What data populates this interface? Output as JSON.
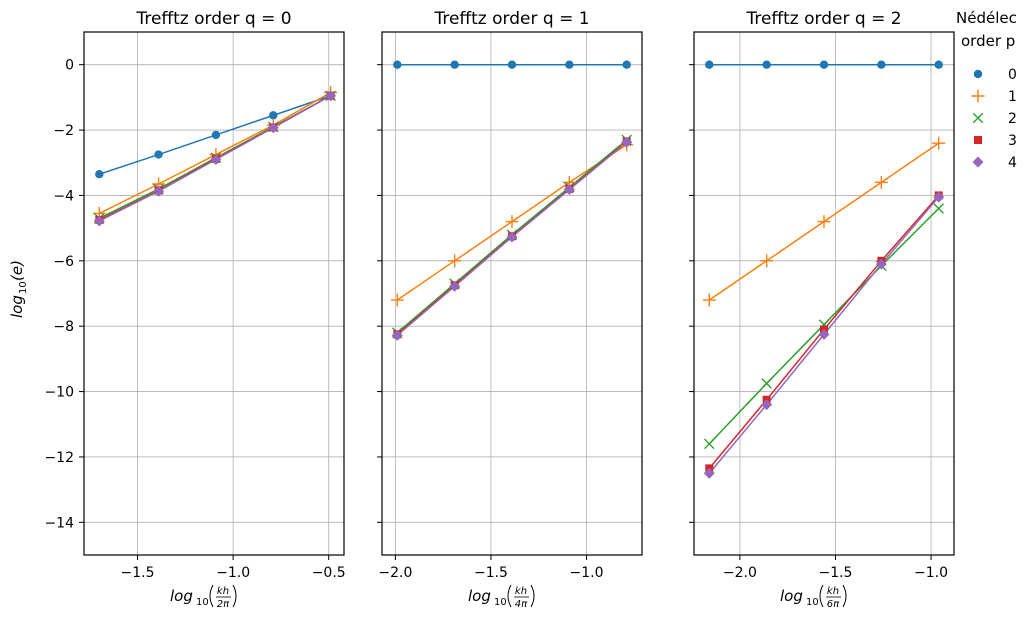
{
  "chart_data": {
    "type": "line",
    "ylabel": "log",
    "ylabel_sub": "10",
    "ylabel_arg": "(e)",
    "ylim": [
      -15,
      1
    ],
    "yticks": [
      0,
      -2,
      -4,
      -6,
      -8,
      -10,
      -12,
      -14
    ],
    "ytick_labels": [
      "0",
      "−2",
      "−4",
      "−6",
      "−8",
      "−10",
      "−12",
      "−14"
    ],
    "grid": true,
    "legend": {
      "title_line1": "Nédélec",
      "title_line2": "order p",
      "placement": "right, outside top",
      "entries": [
        {
          "label": "0",
          "color": "#1f77b4",
          "marker": "circle"
        },
        {
          "label": "1",
          "color": "#ff7f0e",
          "marker": "plus"
        },
        {
          "label": "2",
          "color": "#2ca02c",
          "marker": "x"
        },
        {
          "label": "3",
          "color": "#d62728",
          "marker": "square"
        },
        {
          "label": "4",
          "color": "#9467bd",
          "marker": "diamond"
        }
      ]
    },
    "panels": [
      {
        "title": "Trefftz order q = 0",
        "xlabel_main": "log",
        "xlabel_sub": "10",
        "xlabel_num": "kh",
        "xlabel_den": "2π",
        "xlim": [
          -1.78,
          -0.42
        ],
        "xticks": [
          -1.5,
          -1.0,
          -0.5
        ],
        "xtick_labels": [
          "−1.5",
          "−1.0",
          "−0.5"
        ],
        "show_yticks": true,
        "series": [
          {
            "name": "0",
            "x": [
              -1.7,
              -1.39,
              -1.09,
              -0.79,
              -0.49
            ],
            "y": [
              -3.35,
              -2.75,
              -2.15,
              -1.55,
              -0.95
            ]
          },
          {
            "name": "1",
            "x": [
              -1.7,
              -1.39,
              -1.09,
              -0.79,
              -0.49
            ],
            "y": [
              -4.55,
              -3.65,
              -2.75,
              -1.85,
              -0.85
            ]
          },
          {
            "name": "2",
            "x": [
              -1.7,
              -1.39,
              -1.09,
              -0.79,
              -0.49
            ],
            "y": [
              -4.7,
              -3.8,
              -2.85,
              -1.9,
              -0.95
            ]
          },
          {
            "name": "3",
            "x": [
              -1.7,
              -1.39,
              -1.09,
              -0.79,
              -0.49
            ],
            "y": [
              -4.75,
              -3.85,
              -2.88,
              -1.92,
              -0.95
            ]
          },
          {
            "name": "4",
            "x": [
              -1.7,
              -1.39,
              -1.09,
              -0.79,
              -0.49
            ],
            "y": [
              -4.78,
              -3.87,
              -2.9,
              -1.93,
              -0.95
            ]
          }
        ]
      },
      {
        "title": "Trefftz order q = 1",
        "xlabel_main": "log",
        "xlabel_sub": "10",
        "xlabel_num": "kh",
        "xlabel_den": "4π",
        "xlim": [
          -2.07,
          -0.71
        ],
        "xticks": [
          -2.0,
          -1.5,
          -1.0
        ],
        "xtick_labels": [
          "−2.0",
          "−1.5",
          "−1.0"
        ],
        "show_yticks": false,
        "series": [
          {
            "name": "0",
            "x": [
              -1.99,
              -1.69,
              -1.39,
              -1.09,
              -0.79
            ],
            "y": [
              0,
              0,
              0,
              0,
              0
            ]
          },
          {
            "name": "1",
            "x": [
              -1.99,
              -1.69,
              -1.39,
              -1.09,
              -0.79
            ],
            "y": [
              -7.2,
              -6.0,
              -4.8,
              -3.6,
              -2.45
            ]
          },
          {
            "name": "2",
            "x": [
              -1.99,
              -1.69,
              -1.39,
              -1.09,
              -0.79
            ],
            "y": [
              -8.2,
              -6.7,
              -5.2,
              -3.75,
              -2.3
            ]
          },
          {
            "name": "3",
            "x": [
              -1.99,
              -1.69,
              -1.39,
              -1.09,
              -0.79
            ],
            "y": [
              -8.25,
              -6.75,
              -5.25,
              -3.8,
              -2.35
            ]
          },
          {
            "name": "4",
            "x": [
              -1.99,
              -1.69,
              -1.39,
              -1.09,
              -0.79
            ],
            "y": [
              -8.28,
              -6.78,
              -5.27,
              -3.82,
              -2.37
            ]
          }
        ]
      },
      {
        "title": "Trefftz order q = 2",
        "xlabel_main": "log",
        "xlabel_sub": "10",
        "xlabel_num": "kh",
        "xlabel_den": "6π",
        "xlim": [
          -2.24,
          -0.88
        ],
        "xticks": [
          -2.0,
          -1.5,
          -1.0
        ],
        "xtick_labels": [
          "−2.0",
          "−1.5",
          "−1.0"
        ],
        "show_yticks": false,
        "series": [
          {
            "name": "0",
            "x": [
              -2.16,
              -1.86,
              -1.56,
              -1.26,
              -0.96
            ],
            "y": [
              0,
              0,
              0,
              0,
              0
            ]
          },
          {
            "name": "1",
            "x": [
              -2.16,
              -1.86,
              -1.56,
              -1.26,
              -0.96
            ],
            "y": [
              -7.2,
              -6.0,
              -4.8,
              -3.6,
              -2.4
            ]
          },
          {
            "name": "2",
            "x": [
              -2.16,
              -1.86,
              -1.56,
              -1.26,
              -0.96
            ],
            "y": [
              -11.6,
              -9.75,
              -7.95,
              -6.15,
              -4.4
            ]
          },
          {
            "name": "3",
            "x": [
              -2.16,
              -1.86,
              -1.56,
              -1.26,
              -0.96
            ],
            "y": [
              -12.35,
              -10.25,
              -8.1,
              -6.0,
              -4.0
            ]
          },
          {
            "name": "4",
            "x": [
              -2.16,
              -1.86,
              -1.56,
              -1.26,
              -0.96
            ],
            "y": [
              -12.5,
              -10.4,
              -8.25,
              -6.1,
              -4.05
            ]
          }
        ]
      }
    ]
  }
}
